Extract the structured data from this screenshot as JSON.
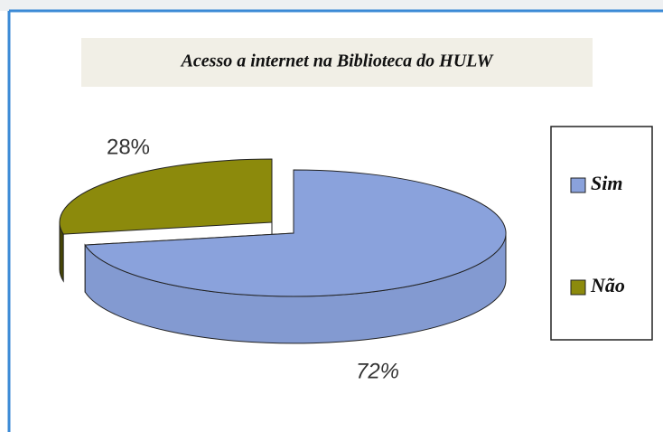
{
  "chart_data": {
    "type": "pie",
    "title": "Acesso a internet na Biblioteca do HULW",
    "categories": [
      "Sim",
      "Não"
    ],
    "values": [
      72,
      28
    ],
    "value_labels": [
      "72%",
      "28%"
    ],
    "colors": [
      "#8aa2dc",
      "#8c8a0c"
    ],
    "legend": "right"
  }
}
